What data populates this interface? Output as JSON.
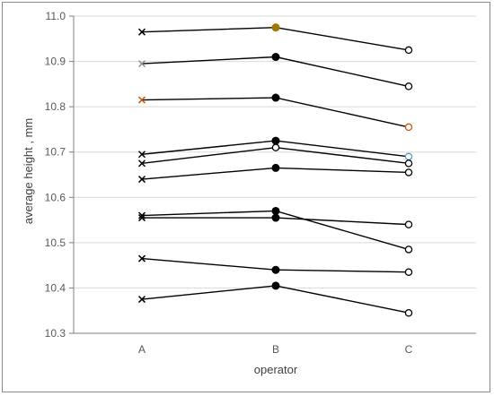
{
  "chart_data": {
    "type": "line",
    "xlabel": "operator",
    "ylabel": "average height , mm",
    "categories": [
      "A",
      "B",
      "C"
    ],
    "ylim": [
      10.3,
      11.0
    ],
    "yticks": [
      10.3,
      10.4,
      10.5,
      10.6,
      10.7,
      10.8,
      10.9,
      11.0
    ],
    "ytick_labels": [
      "10.3",
      "10.4",
      "10.5",
      "10.6",
      "10.7",
      "10.8",
      "10.9",
      "11.0"
    ],
    "grid": "horizontal",
    "line_color": "#000000",
    "grid_color": "#d9d9d9",
    "marker_styles": [
      "cross",
      "filled-circle",
      "open-circle"
    ],
    "series": [
      {
        "values": [
          10.965,
          10.975,
          10.925
        ],
        "marker_colors": [
          "#000000",
          "#a07800",
          "#000000"
        ]
      },
      {
        "values": [
          10.895,
          10.91,
          10.845
        ],
        "marker_colors": [
          "#8c8c8c",
          "#000000",
          "#000000"
        ]
      },
      {
        "values": [
          10.815,
          10.82,
          10.755
        ],
        "marker_colors": [
          "#c55a11",
          "#000000",
          "#c55a11"
        ]
      },
      {
        "values": [
          10.695,
          10.725,
          10.69
        ],
        "marker_colors": [
          "#000000",
          "#000000",
          "#5b9bd5"
        ]
      },
      {
        "values": [
          10.675,
          10.71,
          10.675
        ],
        "marker_colors": [
          "#000000",
          "#000000",
          "#000000"
        ],
        "b_marker": "open-circle"
      },
      {
        "values": [
          10.64,
          10.665,
          10.655
        ],
        "marker_colors": [
          "#000000",
          "#000000",
          "#000000"
        ]
      },
      {
        "values": [
          10.56,
          10.57,
          10.485
        ],
        "marker_colors": [
          "#000000",
          "#000000",
          "#000000"
        ]
      },
      {
        "values": [
          10.555,
          10.555,
          10.54
        ],
        "marker_colors": [
          "#000000",
          "#000000",
          "#000000"
        ]
      },
      {
        "values": [
          10.465,
          10.44,
          10.435
        ],
        "marker_colors": [
          "#000000",
          "#000000",
          "#000000"
        ]
      },
      {
        "values": [
          10.375,
          10.405,
          10.345
        ],
        "marker_colors": [
          "#000000",
          "#000000",
          "#000000"
        ]
      }
    ]
  }
}
